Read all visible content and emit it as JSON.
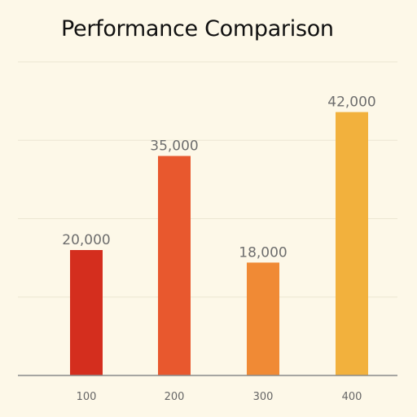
{
  "chart_data": {
    "type": "bar",
    "title": "Performance Comparison",
    "xlabel": "",
    "ylabel": "",
    "categories": [
      "100",
      "200",
      "300",
      "400"
    ],
    "values": [
      20000,
      35000,
      18000,
      42000
    ],
    "value_labels": [
      "20,000",
      "35,000",
      "18,000",
      "42,000"
    ],
    "ylim": [
      0,
      50000
    ],
    "grid": true,
    "legend": "none",
    "colors": [
      "#d42e1e",
      "#e8582e",
      "#f08a35",
      "#f2b13d"
    ]
  },
  "colors": {
    "background": "#fdf8e8",
    "grid": "#ece6d2",
    "axis": "#8a8a8a",
    "title_text": "#111111",
    "label_text": "#6e6e6e"
  }
}
